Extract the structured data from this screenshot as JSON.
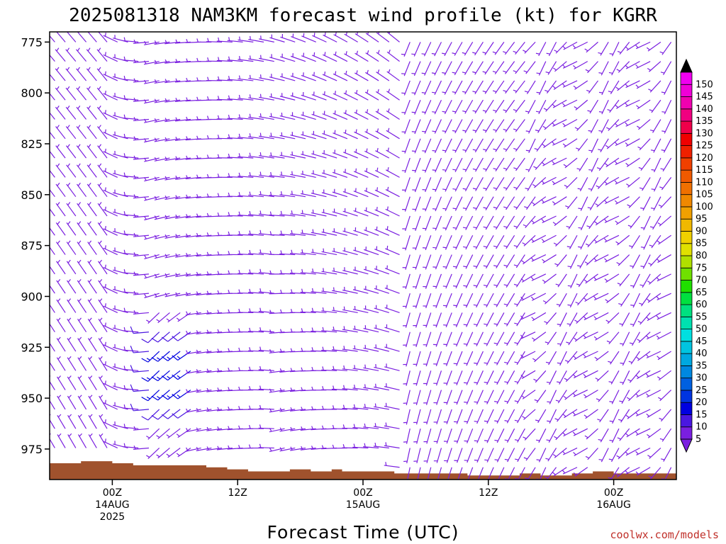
{
  "chart_data": {
    "type": "wind-profile",
    "title": "2025081318 NAM3KM forecast wind profile (kt) for KGRR",
    "xlabel": "Forecast Time (UTC)",
    "ylabel": "",
    "y_axis": {
      "ticks": [
        "775",
        "800",
        "825",
        "850",
        "875",
        "900",
        "925",
        "950",
        "975"
      ],
      "range": [
        770,
        990
      ]
    },
    "x_axis": {
      "ticks": [
        {
          "hours": 6,
          "lines": [
            "00Z",
            "14AUG",
            "2025"
          ]
        },
        {
          "hours": 18,
          "lines": [
            "12Z"
          ]
        },
        {
          "hours": 30,
          "lines": [
            "00Z",
            "15AUG"
          ]
        },
        {
          "hours": 42,
          "lines": [
            "12Z"
          ]
        },
        {
          "hours": 54,
          "lines": [
            "00Z",
            "16AUG"
          ]
        }
      ],
      "range": [
        0,
        60
      ]
    },
    "legend_position": "right",
    "colorbar": {
      "labels": [
        "5",
        "10",
        "15",
        "20",
        "25",
        "30",
        "35",
        "40",
        "45",
        "50",
        "55",
        "60",
        "65",
        "70",
        "75",
        "80",
        "85",
        "90",
        "95",
        "100",
        "105",
        "110",
        "115",
        "120",
        "125",
        "130",
        "135",
        "140",
        "145",
        "150"
      ],
      "colors": [
        "#7a1fe0",
        "#4a17e0",
        "#0000e0",
        "#0034e0",
        "#0060e0",
        "#0088e0",
        "#00a8e0",
        "#00c4e0",
        "#00e0e0",
        "#00e0b0",
        "#00e080",
        "#00e040",
        "#20e000",
        "#70e000",
        "#b0e000",
        "#e0e000",
        "#f0d000",
        "#f0b800",
        "#f0a000",
        "#f08800",
        "#f07000",
        "#f05a00",
        "#f04000",
        "#f02000",
        "#f00000",
        "#f0004a",
        "#f00080",
        "#f000b0",
        "#f000d8",
        "#f000f0"
      ]
    },
    "surface_pressure_hpa": [
      [
        0,
        982
      ],
      [
        3,
        981
      ],
      [
        6,
        982
      ],
      [
        8,
        983
      ],
      [
        11,
        983
      ],
      [
        15,
        984
      ],
      [
        17,
        985
      ],
      [
        19,
        986
      ],
      [
        22,
        986
      ],
      [
        23,
        985
      ],
      [
        25,
        986
      ],
      [
        27,
        985
      ],
      [
        28,
        986
      ],
      [
        32,
        986
      ],
      [
        33,
        987
      ],
      [
        38,
        987
      ],
      [
        40,
        988
      ],
      [
        44,
        988
      ],
      [
        45,
        987
      ],
      [
        47,
        988
      ],
      [
        50,
        987
      ],
      [
        51,
        987
      ],
      [
        52,
        986
      ],
      [
        54,
        987
      ],
      [
        56,
        987
      ],
      [
        60,
        987
      ]
    ],
    "barb_colors": {
      "lt10": "#7a1fe0",
      "lt15": "#4a17e0",
      "lt20": "#0000e0"
    }
  },
  "credit": "coolwx.com/models"
}
